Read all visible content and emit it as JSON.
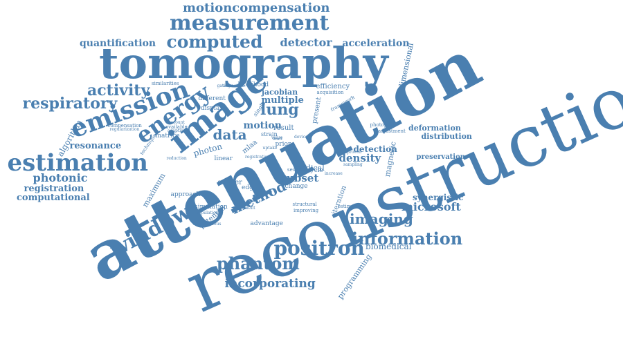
{
  "color": "#4a7fb0",
  "words": [
    {
      "text": "motioncompensation",
      "size": 18,
      "rot": 0,
      "weight": "bold"
    },
    {
      "text": "measurement",
      "size": 30,
      "rot": 0,
      "weight": "bold"
    },
    {
      "text": "computed",
      "size": 25,
      "rot": 0,
      "weight": "bold"
    },
    {
      "text": "detector",
      "size": 16,
      "rot": 0,
      "weight": "bold"
    },
    {
      "text": "quantification",
      "size": 14,
      "rot": 0,
      "weight": "bold"
    },
    {
      "text": "acceleration",
      "size": 14,
      "rot": 0,
      "weight": "bold"
    },
    {
      "text": "tomography",
      "size": 62,
      "rot": 0,
      "weight": "bold"
    },
    {
      "text": "dimensional",
      "size": 11,
      "rot": -78,
      "weight": "normal"
    },
    {
      "text": "activity",
      "size": 22,
      "rot": 0,
      "weight": "bold"
    },
    {
      "text": "respiratory",
      "size": 22,
      "rot": 0,
      "weight": "bold"
    },
    {
      "text": "emission",
      "size": 36,
      "rot": -20,
      "weight": "bold"
    },
    {
      "text": "energy",
      "size": 32,
      "rot": -35,
      "weight": "bold"
    },
    {
      "text": "image",
      "size": 48,
      "rot": -38,
      "weight": "bold"
    },
    {
      "text": "likelihood",
      "size": 9,
      "rot": 0,
      "weight": "normal"
    },
    {
      "text": "jacobian",
      "size": 11,
      "rot": 0,
      "weight": "bold"
    },
    {
      "text": "multiple",
      "size": 13,
      "rot": 0,
      "weight": "bold"
    },
    {
      "text": "lung",
      "size": 22,
      "rot": 0,
      "weight": "bold"
    },
    {
      "text": "efficiency",
      "size": 10,
      "rot": 0,
      "weight": "normal"
    },
    {
      "text": "present",
      "size": 10,
      "rot": -80,
      "weight": "normal"
    },
    {
      "text": "estimation",
      "size": 34,
      "rot": 0,
      "weight": "bold"
    },
    {
      "text": "algorithm",
      "size": 12,
      "rot": -60,
      "weight": "normal"
    },
    {
      "text": "resonance",
      "size": 13,
      "rot": 0,
      "weight": "bold"
    },
    {
      "text": "data",
      "size": 20,
      "rot": 0,
      "weight": "bold"
    },
    {
      "text": "motion",
      "size": 14,
      "rot": 0,
      "weight": "bold"
    },
    {
      "text": "photon",
      "size": 12,
      "rot": -15,
      "weight": "normal"
    },
    {
      "text": "attenuation",
      "size": 96,
      "rot": -28,
      "weight": "bold"
    },
    {
      "text": "reconstruction",
      "size": 102,
      "rot": -24,
      "weight": "normal"
    },
    {
      "text": "photonic",
      "size": 16,
      "rot": 0,
      "weight": "bold"
    },
    {
      "text": "registration",
      "size": 13,
      "rot": 0,
      "weight": "bold"
    },
    {
      "text": "computational",
      "size": 13,
      "rot": 0,
      "weight": "bold"
    },
    {
      "text": "maximum",
      "size": 11,
      "rot": -60,
      "weight": "normal"
    },
    {
      "text": "window",
      "size": 30,
      "rot": -28,
      "weight": "bold"
    },
    {
      "text": "method",
      "size": 20,
      "rot": -25,
      "weight": "bold"
    },
    {
      "text": "subset",
      "size": 15,
      "rot": 0,
      "weight": "bold"
    },
    {
      "text": "density",
      "size": 15,
      "rot": 0,
      "weight": "bold"
    },
    {
      "text": "detection",
      "size": 12,
      "rot": 0,
      "weight": "bold"
    },
    {
      "text": "medical",
      "size": 11,
      "rot": 0,
      "weight": "normal"
    },
    {
      "text": "distribution",
      "size": 11,
      "rot": 0,
      "weight": "bold"
    },
    {
      "text": "deformation",
      "size": 11,
      "rot": 0,
      "weight": "bold"
    },
    {
      "text": "preservation",
      "size": 10,
      "rot": 0,
      "weight": "bold"
    },
    {
      "text": "magnetic",
      "size": 11,
      "rot": -80,
      "weight": "normal"
    },
    {
      "text": "synergistic",
      "size": 12,
      "rot": 0,
      "weight": "bold"
    },
    {
      "text": "microsoft",
      "size": 16,
      "rot": 0,
      "weight": "bold"
    },
    {
      "text": "imaging",
      "size": 20,
      "rot": 0,
      "weight": "bold"
    },
    {
      "text": "information",
      "size": 24,
      "rot": 0,
      "weight": "bold"
    },
    {
      "text": "positron",
      "size": 28,
      "rot": 0,
      "weight": "bold"
    },
    {
      "text": "biomedical",
      "size": 12,
      "rot": 0,
      "weight": "normal"
    },
    {
      "text": "phantom",
      "size": 24,
      "rot": 0,
      "weight": "bold"
    },
    {
      "text": "incorporating",
      "size": 17,
      "rot": 0,
      "weight": "bold"
    },
    {
      "text": "programming",
      "size": 11,
      "rot": -55,
      "weight": "normal"
    },
    {
      "text": "iteration",
      "size": 10,
      "rot": -70,
      "weight": "normal"
    },
    {
      "text": "potential",
      "size": 10,
      "rot": -40,
      "weight": "normal"
    },
    {
      "text": "simulation",
      "size": 9,
      "rot": 0,
      "weight": "normal"
    },
    {
      "text": "advantage",
      "size": 9,
      "rot": 0,
      "weight": "normal"
    },
    {
      "text": "approach",
      "size": 9,
      "rot": 0,
      "weight": "normal"
    },
    {
      "text": "scatter",
      "size": 10,
      "rot": 0,
      "weight": "normal"
    },
    {
      "text": "edge",
      "size": 9,
      "rot": 0,
      "weight": "normal"
    },
    {
      "text": "change",
      "size": 9,
      "rot": 0,
      "weight": "normal"
    },
    {
      "text": "matrice",
      "size": 9,
      "rot": 0,
      "weight": "normal"
    },
    {
      "text": "different",
      "size": 9,
      "rot": 0,
      "weight": "normal"
    },
    {
      "text": "display",
      "size": 9,
      "rot": 0,
      "weight": "normal"
    },
    {
      "text": "result",
      "size": 10,
      "rot": 0,
      "weight": "normal"
    },
    {
      "text": "prior",
      "size": 9,
      "rot": 0,
      "weight": "normal"
    },
    {
      "text": "cycle",
      "size": 9,
      "rot": 0,
      "weight": "normal"
    },
    {
      "text": "linear",
      "size": 9,
      "rot": 0,
      "weight": "normal"
    },
    {
      "text": "mlaa",
      "size": 10,
      "rot": -40,
      "weight": "normal"
    },
    {
      "text": "single",
      "size": 8,
      "rot": -55,
      "weight": "normal"
    },
    {
      "text": "strain",
      "size": 8,
      "rot": 0,
      "weight": "normal"
    },
    {
      "text": "similarities",
      "size": 7,
      "rot": 0,
      "weight": "normal"
    },
    {
      "text": "compensation",
      "size": 7,
      "rot": 0,
      "weight": "normal"
    },
    {
      "text": "technique",
      "size": 7,
      "rot": -55,
      "weight": "normal"
    },
    {
      "text": "available",
      "size": 7,
      "rot": 0,
      "weight": "normal"
    },
    {
      "text": "adjustment",
      "size": 7,
      "rot": 0,
      "weight": "normal"
    },
    {
      "text": "photopeak",
      "size": 7,
      "rot": 0,
      "weight": "normal"
    },
    {
      "text": "acquisition",
      "size": 7,
      "rot": 0,
      "weight": "normal"
    },
    {
      "text": "framework",
      "size": 7,
      "rot": -30,
      "weight": "normal"
    },
    {
      "text": "several",
      "size": 7,
      "rot": 0,
      "weight": "normal"
    },
    {
      "text": "improving",
      "size": 7,
      "rot": 0,
      "weight": "normal"
    },
    {
      "text": "estimating",
      "size": 7,
      "rot": 0,
      "weight": "normal"
    },
    {
      "text": "structural",
      "size": 7,
      "rot": 0,
      "weight": "normal"
    },
    {
      "text": "benefit",
      "size": 6,
      "rot": 0,
      "weight": "normal"
    },
    {
      "text": "simultaneous",
      "size": 6,
      "rot": 0,
      "weight": "normal"
    },
    {
      "text": "reduction",
      "size": 6,
      "rot": 0,
      "weight": "normal"
    },
    {
      "text": "account",
      "size": 6,
      "rot": 0,
      "weight": "normal"
    },
    {
      "text": "regularization",
      "size": 6,
      "rot": 0,
      "weight": "normal"
    },
    {
      "text": "adaptive",
      "size": 6,
      "rot": 0,
      "weight": "normal"
    },
    {
      "text": "increase",
      "size": 6,
      "rot": 0,
      "weight": "normal"
    },
    {
      "text": "registration",
      "size": 6,
      "rot": 0,
      "weight": "normal"
    },
    {
      "text": "improved",
      "size": 6,
      "rot": 0,
      "weight": "normal"
    },
    {
      "text": "population",
      "size": 6,
      "rot": 0,
      "weight": "normal"
    },
    {
      "text": "value",
      "size": 6,
      "rot": 0,
      "weight": "normal"
    },
    {
      "text": "device",
      "size": 6,
      "rot": 0,
      "weight": "normal"
    },
    {
      "text": "limit",
      "size": 6,
      "rot": 0,
      "weight": "normal"
    },
    {
      "text": "sampling",
      "size": 6,
      "rot": 0,
      "weight": "normal"
    },
    {
      "text": "uptake",
      "size": 6,
      "rot": 0,
      "weight": "normal"
    },
    {
      "text": "correction",
      "size": 6,
      "rot": 0,
      "weight": "normal"
    },
    {
      "text": "gating",
      "size": 6,
      "rot": 0,
      "weight": "normal"
    }
  ]
}
